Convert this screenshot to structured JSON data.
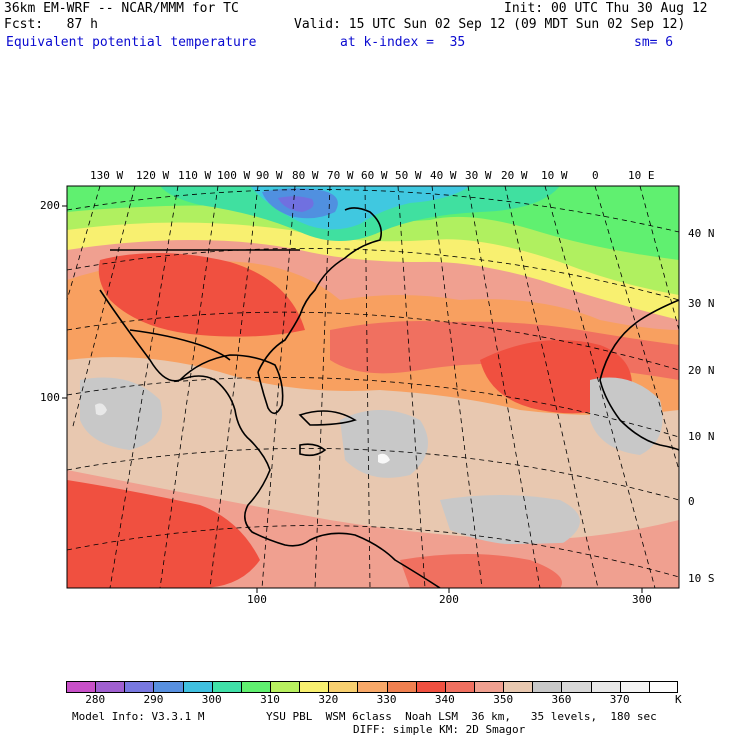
{
  "header": {
    "model_title": "36km EM-WRF -- NCAR/MMM for TC",
    "init": "Init: 00 UTC Thu 30 Aug 12",
    "fcst": "Fcst:   87 h",
    "valid": "Valid: 15 UTC Sun 02 Sep 12 (09 MDT Sun 02 Sep 12)",
    "field": "Equivalent potential temperature",
    "level": "at k-index =  35",
    "smoothing": "sm= 6"
  },
  "map": {
    "lon_labels": [
      "130 W",
      "120 W",
      "110 W",
      "100 W",
      "90 W",
      "80 W",
      "70 W",
      "60 W",
      "50 W",
      "40 W",
      "30 W",
      "20 W",
      "10 W",
      "0",
      "10 E"
    ],
    "lat_labels": [
      "40 N",
      "30 N",
      "20 N",
      "10 N",
      "0",
      "10 S"
    ],
    "y_axis_labels": [
      "200",
      "100"
    ],
    "x_axis_labels": [
      "100",
      "200",
      "300"
    ],
    "colors": {
      "c_lt280": "#c850c8",
      "c280": "#a060d0",
      "c290": "#7070e0",
      "c295": "#5090e0",
      "c300": "#40c8e0",
      "c305": "#40e0a0",
      "c310": "#60f070",
      "c315": "#b0f060",
      "c320": "#f8f070",
      "c325": "#f8d070",
      "c330": "#f8a060",
      "c335": "#f08050",
      "c340": "#f05040",
      "c345": "#f07060",
      "c350": "#f0a090",
      "c355": "#e8c8b0",
      "c360": "#c8c8c8",
      "c365": "#d8d8d8",
      "c370": "#e8e8e8",
      "c375": "#f8f8f8"
    }
  },
  "colorbar": {
    "colors": [
      "#c850c8",
      "#a060d0",
      "#7878e0",
      "#5890e0",
      "#40c0e0",
      "#40e0a8",
      "#60f070",
      "#b8f060",
      "#f8f070",
      "#f8d070",
      "#f8a868",
      "#f08050",
      "#f05040",
      "#f07060",
      "#f0a090",
      "#e8c8b0",
      "#c8c8c8",
      "#d8d8d8",
      "#e8e8e8",
      "#f4f4f4",
      "#fcfcfc"
    ],
    "labels": [
      "280",
      "290",
      "300",
      "310",
      "320",
      "330",
      "340",
      "350",
      "360",
      "370"
    ],
    "unit": "K"
  },
  "footer": {
    "model_info": "Model Info: V3.3.1 M",
    "physics": "YSU PBL  WSM 6class  Noah LSM  36 km,   35 levels,  180 sec",
    "diffusion": "DIFF: simple KM: 2D Smagor"
  }
}
